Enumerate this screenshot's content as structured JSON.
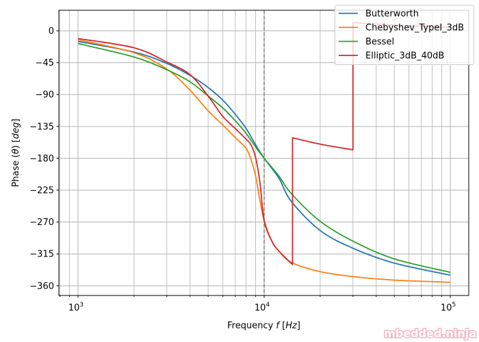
{
  "chart_data": {
    "type": "line",
    "title": "",
    "xlabel": "Frequency $f$ [$Hz$]",
    "xlabel_parts": [
      "Frequency ",
      "f",
      " [",
      "Hz",
      "]"
    ],
    "ylabel": "Phase ($\\theta$) [$deg$]",
    "ylabel_parts": [
      "Phase (",
      "θ",
      ") [",
      "deg",
      "]"
    ],
    "xscale": "log",
    "xlim": [
      789,
      125600
    ],
    "ylim": [
      -373.7,
      29
    ],
    "grid": true,
    "grid_minor_x": true,
    "xticks": [
      {
        "value": 1000,
        "base": "10",
        "exp": "3"
      },
      {
        "value": 10000,
        "base": "10",
        "exp": "4"
      },
      {
        "value": 100000,
        "base": "10",
        "exp": "5"
      }
    ],
    "yticks": [
      {
        "value": 0,
        "label": "0"
      },
      {
        "value": -45,
        "label": "−45"
      },
      {
        "value": -90,
        "label": "−90"
      },
      {
        "value": -135,
        "label": "−135"
      },
      {
        "value": -180,
        "label": "−180"
      },
      {
        "value": -225,
        "label": "−225"
      },
      {
        "value": -270,
        "label": "−270"
      },
      {
        "value": -315,
        "label": "−315"
      },
      {
        "value": -360,
        "label": "−360"
      }
    ],
    "vline": {
      "x": 10000,
      "style": "dashed",
      "color": "#808080"
    },
    "legend_placement": "top-right",
    "series": [
      {
        "name": "Butterworth",
        "color": "#1f77b4",
        "segments": [
          [
            [
              1000,
              -15
            ],
            [
              2000,
              -30
            ],
            [
              3000,
              -46
            ],
            [
              4000,
              -63
            ],
            [
              5000,
              -80
            ],
            [
              6000,
              -98
            ],
            [
              7000,
              -118
            ],
            [
              8000,
              -138
            ],
            [
              9000,
              -161
            ],
            [
              10000,
              -180
            ],
            [
              12000,
              -208
            ],
            [
              14000,
              -241
            ],
            [
              20000,
              -282
            ],
            [
              30000,
              -307
            ],
            [
              50000,
              -328
            ],
            [
              100000,
              -345
            ]
          ]
        ]
      },
      {
        "name": "Chebyshev_TypeI_3dB",
        "color": "#ff7f0e",
        "segments": [
          [
            [
              1000,
              -12.5
            ],
            [
              2000,
              -31
            ],
            [
              3000,
              -54
            ],
            [
              4000,
              -84
            ],
            [
              5000,
              -113
            ],
            [
              6000,
              -133
            ],
            [
              7000,
              -151
            ],
            [
              8000,
              -166
            ],
            [
              8500,
              -182
            ],
            [
              9000,
              -205
            ],
            [
              9500,
              -240
            ],
            [
              10000,
              -268
            ],
            [
              11000,
              -297
            ],
            [
              12000,
              -311
            ],
            [
              14000,
              -327
            ],
            [
              20000,
              -340
            ],
            [
              30000,
              -347
            ],
            [
              50000,
              -352
            ],
            [
              100000,
              -355
            ]
          ]
        ]
      },
      {
        "name": "Bessel",
        "color": "#2ca02c",
        "segments": [
          [
            [
              1000,
              -18
            ],
            [
              2000,
              -37
            ],
            [
              3000,
              -55
            ],
            [
              4000,
              -72
            ],
            [
              5000,
              -92
            ],
            [
              6000,
              -109
            ],
            [
              7000,
              -127
            ],
            [
              8000,
              -145
            ],
            [
              9000,
              -164
            ],
            [
              10000,
              -180
            ],
            [
              12000,
              -205
            ],
            [
              14000,
              -230
            ],
            [
              20000,
              -269
            ],
            [
              30000,
              -297
            ],
            [
              50000,
              -322
            ],
            [
              100000,
              -341
            ]
          ]
        ]
      },
      {
        "name": "Elliptic_3dB_40dB",
        "color": "#d62728",
        "segments": [
          [
            [
              1000,
              -11
            ],
            [
              2000,
              -24
            ],
            [
              3000,
              -44
            ],
            [
              4000,
              -62
            ],
            [
              5000,
              -92
            ],
            [
              6000,
              -121
            ],
            [
              7000,
              -138
            ],
            [
              8000,
              -153
            ],
            [
              8500,
              -161
            ],
            [
              9000,
              -179
            ],
            [
              9500,
              -215
            ],
            [
              10000,
              -268
            ],
            [
              11000,
              -297
            ],
            [
              12000,
              -311
            ],
            [
              14200,
              -330
            ]
          ],
          [
            [
              14200,
              -151
            ],
            [
              20000,
              -160
            ],
            [
              30000,
              -168
            ]
          ],
          [
            [
              30000,
              11.6
            ],
            [
              50000,
              8
            ],
            [
              100000,
              5
            ]
          ]
        ]
      }
    ]
  },
  "watermark": "mbedded.ninja"
}
